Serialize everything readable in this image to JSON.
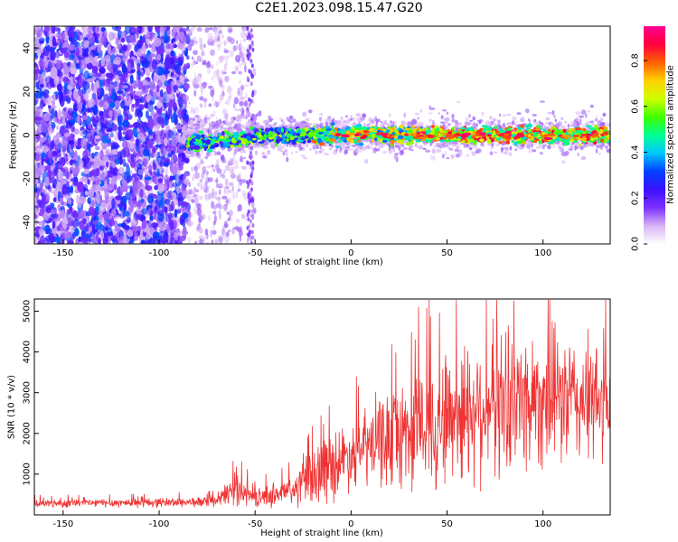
{
  "title": "C2E1.2023.098.15.47.G20",
  "chart_data": [
    {
      "type": "heatmap",
      "xlabel": "Height of straight line (km)",
      "ylabel": "Frequency (Hz)",
      "xlim": [
        -165,
        135
      ],
      "ylim": [
        -50,
        50
      ],
      "xticks": [
        -150,
        -100,
        -50,
        0,
        50,
        100
      ],
      "yticks": [
        -40,
        -20,
        0,
        20,
        40
      ],
      "grid": false,
      "description_series": [
        {
          "region": "x < -85",
          "pattern": "scattered noise across all frequencies"
        },
        {
          "region": "-85 to -50",
          "pattern": "sparse noise, strip near -53"
        },
        {
          "region": "x > -85",
          "pattern": "strong band centred near 0 Hz"
        }
      ],
      "colorbar": {
        "label": "Normalized spectral amplitude",
        "range": [
          0.0,
          0.95
        ],
        "ticks": [
          0.0,
          0.2,
          0.4,
          0.6,
          0.8
        ],
        "tick_labels": [
          "0.0",
          "0.2",
          "0.4",
          "0.6",
          "0.8"
        ],
        "colormap_stops": [
          "#ffffff",
          "#d8b4f5",
          "#7b2fff",
          "#3b10ff",
          "#0040ff",
          "#00c8ff",
          "#00ff90",
          "#40ff00",
          "#d0ff00",
          "#ffd000",
          "#ff6000",
          "#ff0040",
          "#ff0090"
        ]
      }
    },
    {
      "type": "line",
      "xlabel": "Height of straight line (km)",
      "ylabel": "SNR (10 * v/v)",
      "xlim": [
        -165,
        135
      ],
      "ylim": [
        0,
        5300
      ],
      "xticks": [
        -150,
        -100,
        -50,
        0,
        50,
        100
      ],
      "yticks": [
        1000,
        2000,
        3000,
        4000,
        5000
      ],
      "color": "#ee3333",
      "grid": false,
      "envelope": [
        {
          "x": -165,
          "mean": 280,
          "spread": 120
        },
        {
          "x": -70,
          "mean": 320,
          "spread": 160
        },
        {
          "x": -60,
          "mean": 700,
          "spread": 550
        },
        {
          "x": -50,
          "mean": 400,
          "spread": 250
        },
        {
          "x": -30,
          "mean": 600,
          "spread": 500
        },
        {
          "x": -15,
          "mean": 1100,
          "spread": 1100
        },
        {
          "x": 0,
          "mean": 1500,
          "spread": 1000
        },
        {
          "x": 20,
          "mean": 1900,
          "spread": 1500
        },
        {
          "x": 40,
          "mean": 2200,
          "spread": 2000
        },
        {
          "x": 60,
          "mean": 2600,
          "spread": 2200
        },
        {
          "x": 80,
          "mean": 2800,
          "spread": 2200
        },
        {
          "x": 100,
          "mean": 2900,
          "spread": 2100
        },
        {
          "x": 120,
          "mean": 2800,
          "spread": 1900
        },
        {
          "x": 135,
          "mean": 2700,
          "spread": 1800
        }
      ]
    }
  ]
}
